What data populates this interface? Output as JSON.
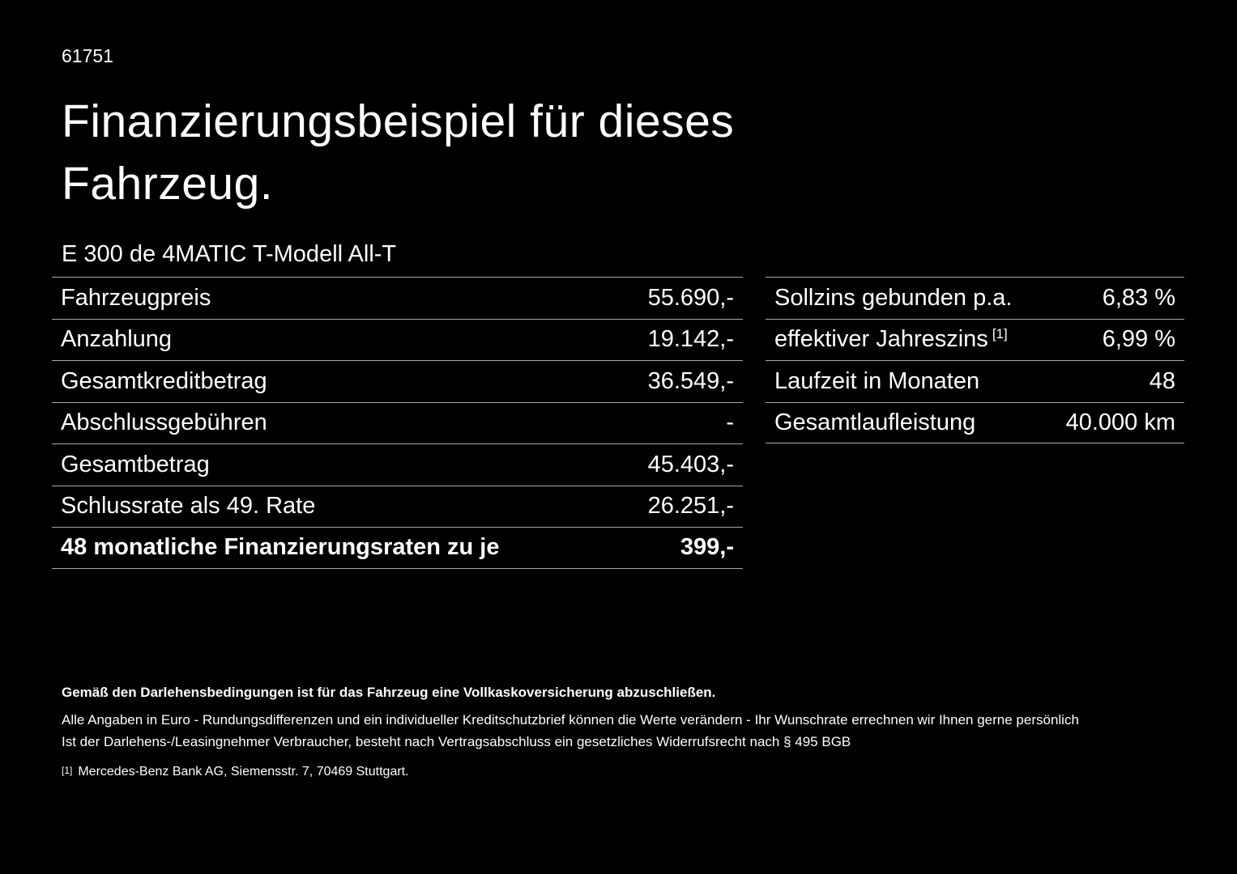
{
  "page": {
    "doc_number": "61751",
    "title_line1": "Finanzierungsbeispiel für dieses",
    "title_line2": "Fahrzeug.",
    "model": "E 300 de 4MATIC T-Modell All-T"
  },
  "left_table": {
    "rows": [
      {
        "label": "Fahrzeugpreis",
        "value": "55.690,-"
      },
      {
        "label": "Anzahlung",
        "value": "19.142,-"
      },
      {
        "label": "Gesamtkreditbetrag",
        "value": "36.549,-"
      },
      {
        "label": "Abschlussgebühren",
        "value": "-"
      },
      {
        "label": "Gesamtbetrag",
        "value": "45.403,-"
      },
      {
        "label": "Schlussrate als 49. Rate",
        "value": "26.251,-"
      },
      {
        "label": "48 monatliche Finanzierungsraten zu je",
        "value": "399,-"
      }
    ]
  },
  "right_table": {
    "rows": [
      {
        "label": "Sollzins gebunden p.a.",
        "value": "6,83 %"
      },
      {
        "label": "effektiver Jahreszins",
        "sup": "[1]",
        "value": "6,99 %"
      },
      {
        "label": "Laufzeit in Monaten",
        "value": "48"
      },
      {
        "label": "Gesamtlaufleistung",
        "value": "40.000 km"
      }
    ]
  },
  "footer": {
    "insurance_note": "Gemäß den Darlehensbedingungen ist für das Fahrzeug eine Vollkaskoversicherung abzuschließen.",
    "note_line1": "Alle Angaben in Euro - Rundungsdifferenzen und ein individueller Kreditschutzbrief können die Werte verändern - Ihr Wunschrate errechnen wir Ihnen gerne persönlich",
    "note_line2": "Ist der Darlehens-/Leasingnehmer Verbraucher, besteht nach Vertragsabschluss ein gesetzliches Widerrufsrecht nach § 495 BGB",
    "footnote_marker": "[1]",
    "footnote_text": "Mercedes-Benz Bank AG, Siemensstr. 7, 70469 Stuttgart."
  }
}
